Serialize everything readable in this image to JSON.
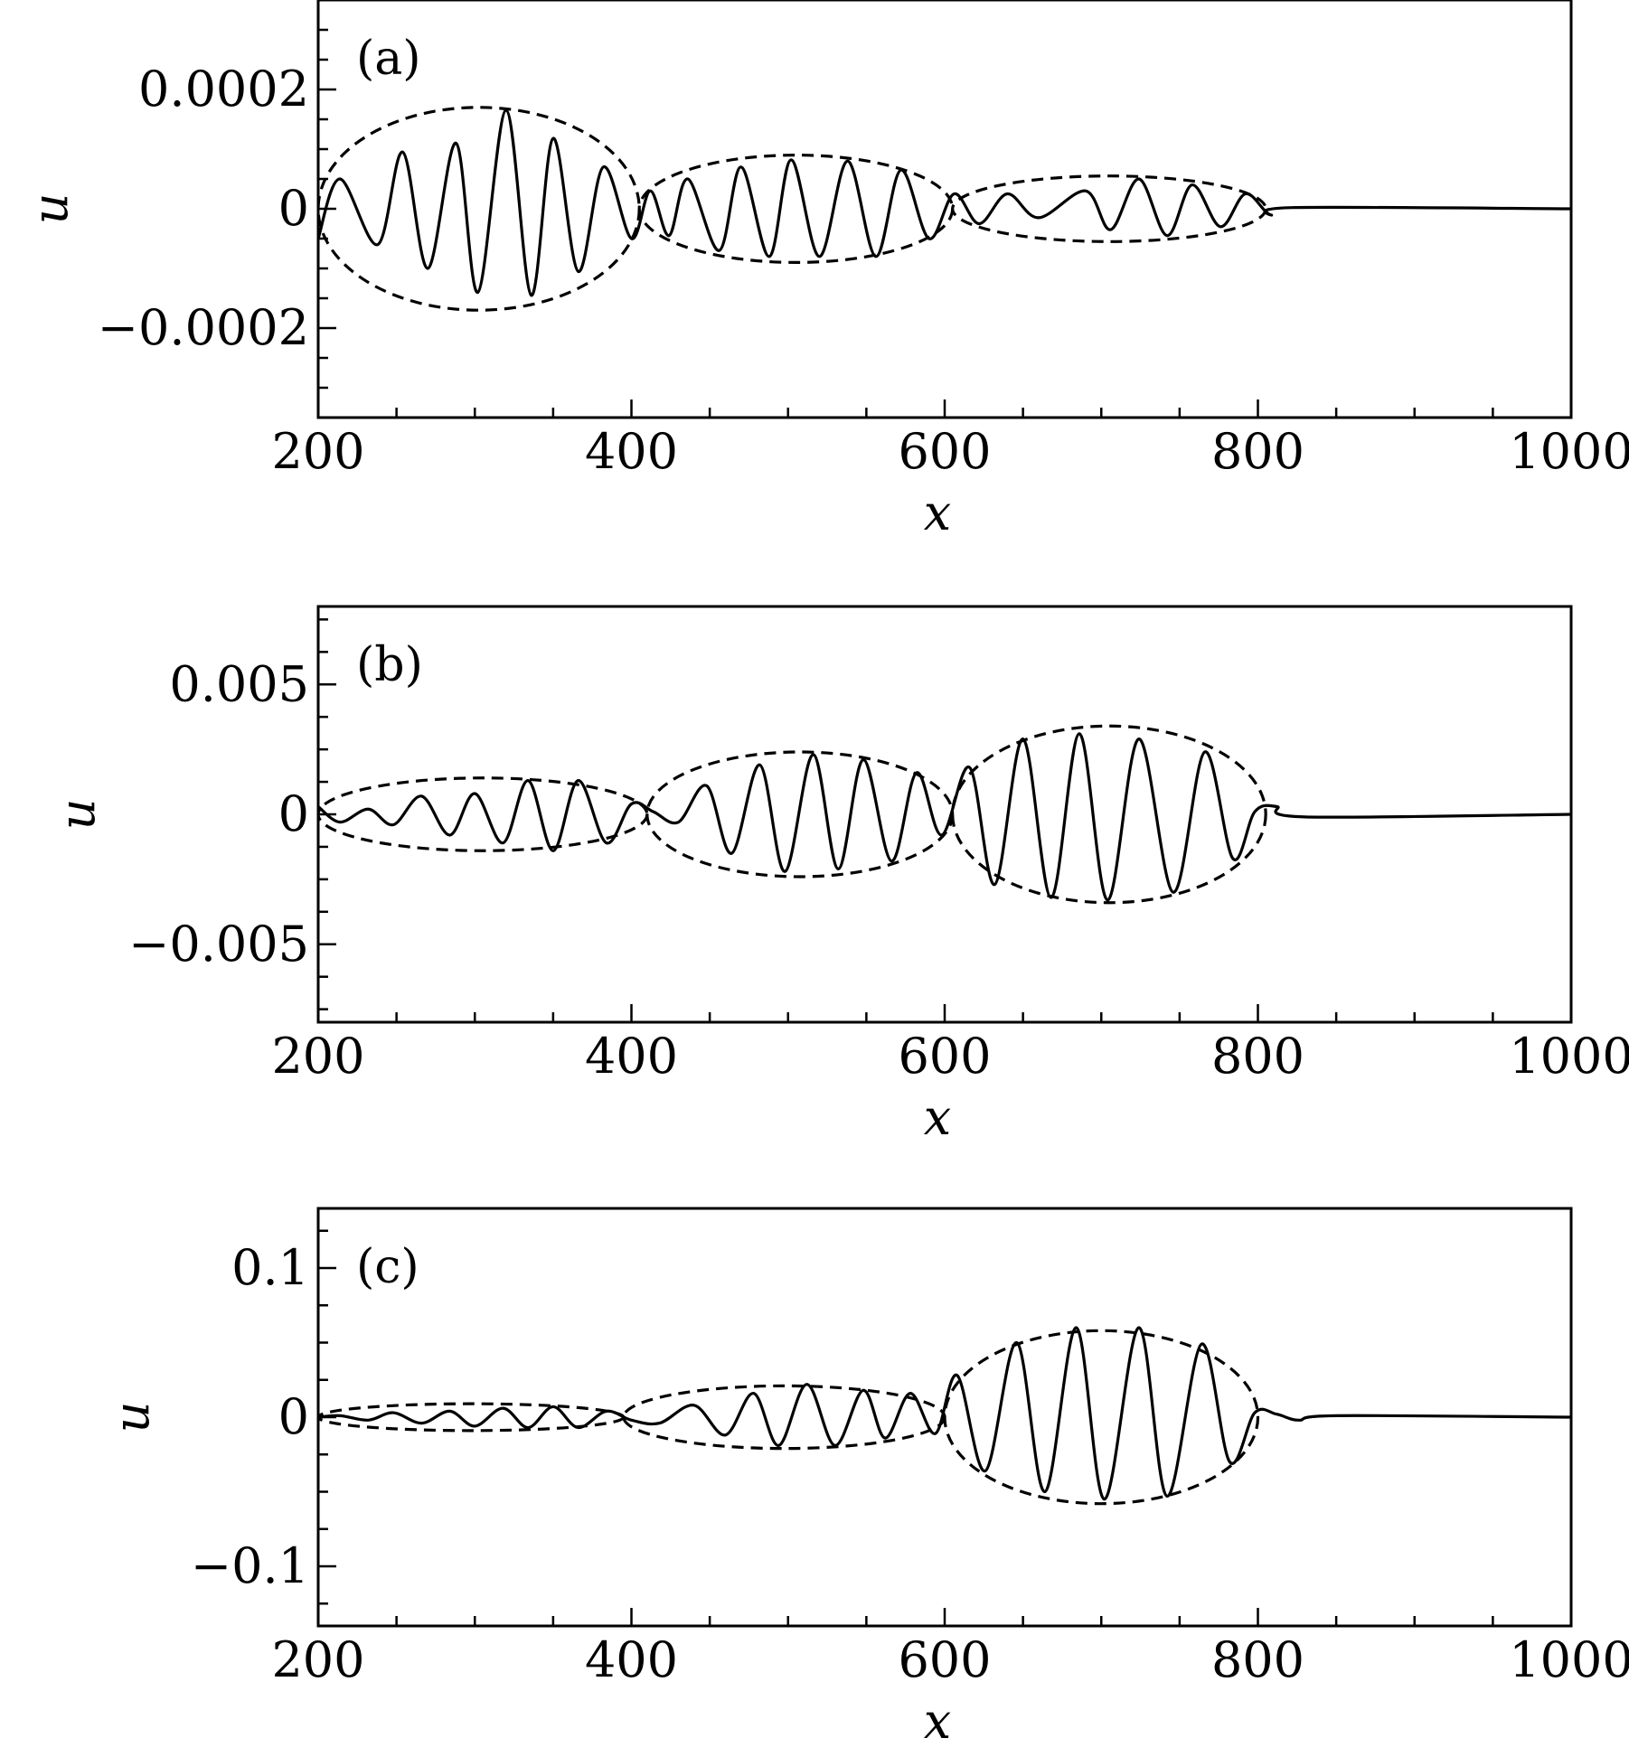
{
  "figure": {
    "panels": [
      "(a)",
      "(b)",
      "(c)"
    ]
  },
  "chart_data": [
    {
      "type": "line",
      "panel_label": "(a)",
      "xlabel": "x",
      "ylabel": "u",
      "xlim": [
        200,
        1000
      ],
      "ylim": [
        -0.00035,
        0.00035
      ],
      "xticks": [
        200,
        400,
        600,
        800,
        1000
      ],
      "xtick_labels": [
        "200",
        "400",
        "600",
        "800",
        "1000"
      ],
      "yticks": [
        0.0002,
        0,
        -0.0002
      ],
      "ytick_labels": [
        "0.0002",
        "0",
        "−0.0002"
      ],
      "grid": false,
      "series": [
        {
          "style": "solid",
          "wavelength": 33,
          "peaks": [
            [
              200,
              -5e-05
            ],
            [
              214,
              5e-05
            ],
            [
              238,
              -6e-05
            ],
            [
              254,
              9.5e-05
            ],
            [
              270,
              -0.0001
            ],
            [
              288,
              0.00011
            ],
            [
              302,
              -0.00014
            ],
            [
              320,
              0.000165
            ],
            [
              336,
              -0.000145
            ],
            [
              350,
              0.000118
            ],
            [
              366,
              -0.000105
            ],
            [
              382,
              7e-05
            ],
            [
              400,
              -5e-05
            ],
            [
              412,
              3e-05
            ],
            [
              424,
              -4.5e-05
            ],
            [
              436,
              5e-05
            ],
            [
              456,
              -7e-05
            ],
            [
              470,
              7e-05
            ],
            [
              488,
              -8e-05
            ],
            [
              502,
              8.2e-05
            ],
            [
              520,
              -8e-05
            ],
            [
              538,
              8e-05
            ],
            [
              556,
              -8e-05
            ],
            [
              572,
              6.5e-05
            ],
            [
              590,
              -5e-05
            ],
            [
              606,
              2.5e-05
            ],
            [
              622,
              -2.5e-05
            ],
            [
              640,
              2.5e-05
            ],
            [
              660,
              -1.5e-05
            ],
            [
              690,
              3e-05
            ],
            [
              706,
              -3.5e-05
            ],
            [
              724,
              5e-05
            ],
            [
              742,
              -4.5e-05
            ],
            [
              758,
              4e-05
            ],
            [
              776,
              -3e-05
            ],
            [
              792,
              2.5e-05
            ],
            [
              808,
              -1e-05
            ],
            [
              822,
              2e-06
            ],
            [
              1000,
              0
            ]
          ]
        },
        {
          "style": "dashed",
          "envelopes": [
            {
              "x0": 200,
              "x1": 405,
              "amp": 0.00017
            },
            {
              "x0": 405,
              "x1": 605,
              "amp": 9e-05
            },
            {
              "x0": 605,
              "x1": 805,
              "amp": 5.5e-05
            }
          ]
        }
      ]
    },
    {
      "type": "line",
      "panel_label": "(b)",
      "xlabel": "x",
      "ylabel": "u",
      "xlim": [
        200,
        1000
      ],
      "ylim": [
        -0.008,
        0.008
      ],
      "xticks": [
        200,
        400,
        600,
        800,
        1000
      ],
      "xtick_labels": [
        "200",
        "400",
        "600",
        "800",
        "1000"
      ],
      "yticks": [
        0.005,
        0,
        -0.005
      ],
      "ytick_labels": [
        "0.005",
        "0",
        "−0.005"
      ],
      "grid": false,
      "series": [
        {
          "style": "solid",
          "peaks": [
            [
              200,
              0.0003
            ],
            [
              214,
              -0.0003
            ],
            [
              232,
              0.0002
            ],
            [
              248,
              -0.0004
            ],
            [
              266,
              0.0007
            ],
            [
              284,
              -0.0008
            ],
            [
              300,
              0.0008
            ],
            [
              318,
              -0.0011
            ],
            [
              334,
              0.0013
            ],
            [
              350,
              -0.0014
            ],
            [
              366,
              0.0013
            ],
            [
              384,
              -0.0011
            ],
            [
              400,
              0.0004
            ],
            [
              414,
              0.0001
            ],
            [
              430,
              -0.0003
            ],
            [
              448,
              0.0011
            ],
            [
              464,
              -0.0015
            ],
            [
              482,
              0.0019
            ],
            [
              498,
              -0.0022
            ],
            [
              516,
              0.0023
            ],
            [
              532,
              -0.0021
            ],
            [
              548,
              0.0021
            ],
            [
              566,
              -0.0018
            ],
            [
              582,
              0.0016
            ],
            [
              598,
              -0.0008
            ],
            [
              616,
              0.0018
            ],
            [
              632,
              -0.0027
            ],
            [
              650,
              0.0029
            ],
            [
              668,
              -0.0032
            ],
            [
              686,
              0.0031
            ],
            [
              704,
              -0.0033
            ],
            [
              724,
              0.0029
            ],
            [
              746,
              -0.003
            ],
            [
              766,
              0.0024
            ],
            [
              784,
              -0.0017
            ],
            [
              798,
              0.0001
            ],
            [
              812,
              0.0003
            ],
            [
              830,
              -0.0001
            ],
            [
              1000,
              0
            ]
          ]
        },
        {
          "style": "dashed",
          "envelopes": [
            {
              "x0": 200,
              "x1": 410,
              "amp": 0.0014
            },
            {
              "x0": 410,
              "x1": 605,
              "amp": 0.0024
            },
            {
              "x0": 605,
              "x1": 805,
              "amp": 0.0034
            }
          ]
        }
      ]
    },
    {
      "type": "line",
      "panel_label": "(c)",
      "xlabel": "x",
      "ylabel": "u",
      "xlim": [
        200,
        1000
      ],
      "ylim": [
        -0.14,
        0.14
      ],
      "xticks": [
        200,
        400,
        600,
        800,
        1000
      ],
      "xtick_labels": [
        "200",
        "400",
        "600",
        "800",
        "1000"
      ],
      "yticks": [
        0.1,
        0,
        -0.1
      ],
      "ytick_labels": [
        "0.1",
        "0",
        "−0.1"
      ],
      "grid": false,
      "series": [
        {
          "style": "solid",
          "peaks": [
            [
              200,
              0.0
            ],
            [
              214,
              0.001
            ],
            [
              232,
              -0.002
            ],
            [
              248,
              0.003
            ],
            [
              266,
              -0.004
            ],
            [
              284,
              0.004
            ],
            [
              300,
              -0.006
            ],
            [
              318,
              0.006
            ],
            [
              334,
              -0.007
            ],
            [
              350,
              0.007
            ],
            [
              366,
              -0.007
            ],
            [
              384,
              0.004
            ],
            [
              400,
              -0.002
            ],
            [
              418,
              -0.004
            ],
            [
              440,
              0.008
            ],
            [
              460,
              -0.012
            ],
            [
              478,
              0.016
            ],
            [
              494,
              -0.019
            ],
            [
              512,
              0.022
            ],
            [
              530,
              -0.019
            ],
            [
              548,
              0.018
            ],
            [
              562,
              -0.014
            ],
            [
              578,
              0.016
            ],
            [
              594,
              -0.011
            ],
            [
              608,
              0.028
            ],
            [
              626,
              -0.036
            ],
            [
              646,
              0.05
            ],
            [
              664,
              -0.05
            ],
            [
              684,
              0.06
            ],
            [
              702,
              -0.055
            ],
            [
              724,
              0.06
            ],
            [
              742,
              -0.053
            ],
            [
              764,
              0.049
            ],
            [
              782,
              -0.03
            ],
            [
              798,
              0.003
            ],
            [
              812,
              0.002
            ],
            [
              826,
              -0.002
            ],
            [
              850,
              0.001
            ],
            [
              1000,
              0.0
            ]
          ]
        },
        {
          "style": "dashed",
          "envelopes": [
            {
              "x0": 200,
              "x1": 395,
              "amp": 0.009
            },
            {
              "x0": 395,
              "x1": 600,
              "amp": 0.021
            },
            {
              "x0": 600,
              "x1": 800,
              "amp": 0.058
            }
          ]
        }
      ]
    }
  ]
}
